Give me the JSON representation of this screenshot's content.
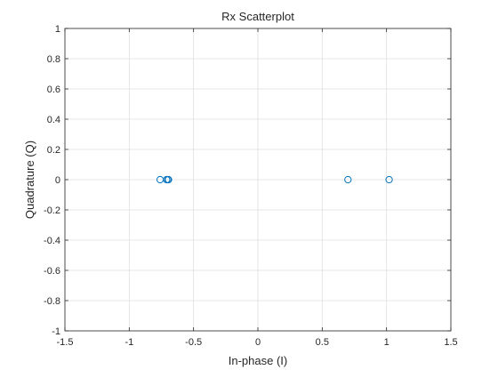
{
  "chart_data": {
    "type": "scatter",
    "title": "Rx Scatterplot",
    "xlabel": "In-phase (I)",
    "ylabel": "Quadrature (Q)",
    "xlim": [
      -1.5,
      1.5
    ],
    "ylim": [
      -1,
      1
    ],
    "xticks": [
      -1.5,
      -1,
      -0.5,
      0,
      0.5,
      1,
      1.5
    ],
    "xtick_labels": [
      "-1.5",
      "-1",
      "-0.5",
      "0",
      "0.5",
      "1",
      "1.5"
    ],
    "yticks": [
      -1,
      -0.8,
      -0.6,
      -0.4,
      -0.2,
      0,
      0.2,
      0.4,
      0.6,
      0.8,
      1
    ],
    "ytick_labels": [
      "-1",
      "-0.8",
      "-0.6",
      "-0.4",
      "-0.2",
      "0",
      "0.2",
      "0.4",
      "0.6",
      "0.8",
      "1"
    ],
    "grid": true,
    "marker": "open-circle",
    "marker_color": "#0072BD",
    "points": [
      {
        "x": -0.76,
        "y": 0
      },
      {
        "x": -0.71,
        "y": 0
      },
      {
        "x": -0.7,
        "y": 0
      },
      {
        "x": -0.695,
        "y": 0
      },
      {
        "x": 0.7,
        "y": 0
      },
      {
        "x": 1.02,
        "y": 0
      }
    ]
  }
}
